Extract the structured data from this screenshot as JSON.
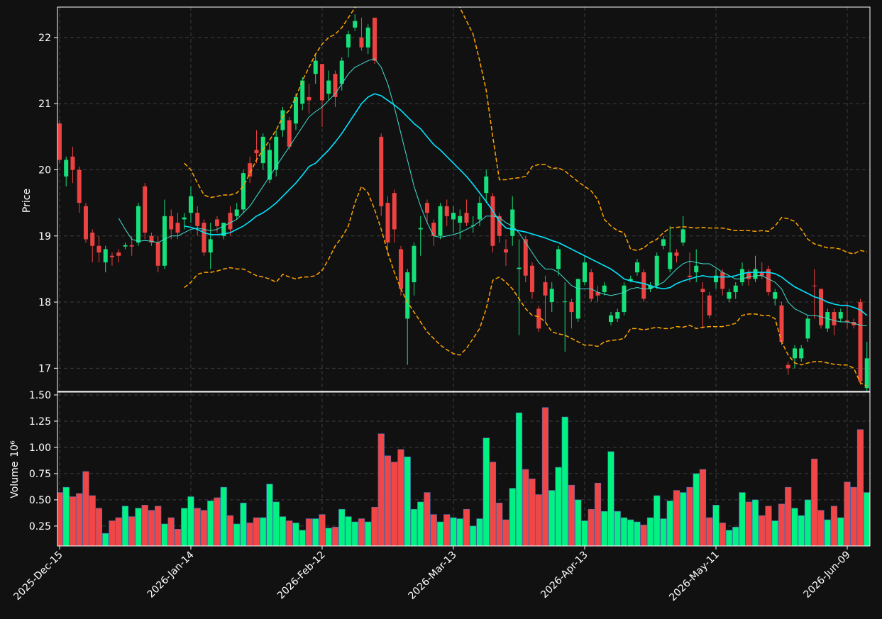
{
  "chart_data": {
    "type": "candlestick",
    "ylabel": "Price",
    "volume_ylabel": "Volume",
    "volume_scale_label": "10⁶",
    "up_color": "#16e07a",
    "down_color": "#ec4242",
    "volume_up_color": "#00f283",
    "volume_down_color": "#f24646",
    "grid": true,
    "xlim": [
      -0.32,
      123.46
    ],
    "xticks": [
      {
        "value": 0,
        "label": "2025-Dec-15"
      },
      {
        "value": 20,
        "label": "2026-Jan-14"
      },
      {
        "value": 40,
        "label": "2026-Feb-12"
      },
      {
        "value": 60,
        "label": "2026-Mar-13"
      },
      {
        "value": 80,
        "label": "2026-Apr-13"
      },
      {
        "value": 100,
        "label": "2026-May-11"
      },
      {
        "value": 120,
        "label": "2026-Jun-09"
      }
    ],
    "ylim": [
      16.65,
      22.46
    ],
    "yticks": [
      17,
      18,
      19,
      20,
      21,
      22
    ],
    "volume_ylim": [
      0.06,
      1.527
    ],
    "volume_yticks": [
      0.25,
      {
        "value": 0.5,
        "label": "0.50"
      },
      0.75,
      {
        "value": 1.0,
        "label": "1.00"
      },
      1.25,
      {
        "value": 1.5,
        "label": "1.50"
      }
    ],
    "open": [
      20.7,
      19.9,
      20.2,
      20.0,
      19.45,
      19.05,
      18.85,
      18.6,
      18.7,
      18.75,
      18.84,
      18.86,
      18.9,
      19.75,
      19.0,
      18.9,
      18.55,
      19.3,
      19.2,
      19.25,
      19.35,
      19.35,
      19.2,
      18.75,
      19.25,
      19.0,
      19.35,
      19.3,
      19.4,
      20.1,
      20.3,
      20.1,
      19.85,
      20.0,
      20.6,
      20.75,
      20.7,
      21.0,
      21.1,
      21.45,
      21.6,
      21.15,
      21.45,
      21.3,
      21.85,
      22.15,
      22.0,
      21.85,
      22.3,
      20.5,
      19.5,
      19.65,
      18.8,
      17.75,
      18.3,
      19.1,
      19.5,
      19.2,
      19.0,
      19.45,
      19.25,
      19.2,
      19.35,
      19.15,
      19.25,
      19.65,
      19.6,
      19.3,
      18.8,
      19.0,
      18.5,
      18.95,
      18.55,
      17.9,
      18.3,
      18.0,
      18.5,
      18.0,
      18.0,
      17.75,
      18.3,
      18.45,
      18.15,
      18.15,
      17.7,
      17.75,
      17.85,
      18.32,
      18.45,
      18.45,
      18.2,
      18.25,
      18.85,
      18.5,
      18.75,
      18.9,
      18.4,
      18.45,
      18.2,
      18.1,
      18.3,
      18.45,
      18.05,
      18.15,
      18.3,
      18.45,
      18.35,
      18.45,
      18.5,
      18.05,
      17.95,
      17.05,
      17.15,
      17.15,
      17.45,
      18.25,
      18.2,
      17.6,
      17.85,
      17.75,
      17.72,
      17.7,
      18.0,
      16.7
    ],
    "high": [
      20.75,
      20.2,
      20.35,
      20.05,
      19.5,
      19.1,
      19.0,
      18.85,
      18.75,
      18.8,
      18.9,
      19.0,
      19.5,
      19.8,
      19.05,
      19.0,
      19.55,
      19.4,
      19.35,
      19.35,
      19.75,
      19.45,
      19.25,
      19.2,
      19.3,
      19.2,
      19.45,
      19.5,
      20.0,
      20.2,
      20.6,
      20.55,
      20.4,
      20.6,
      20.95,
      20.8,
      21.15,
      21.4,
      21.3,
      21.75,
      21.6,
      21.5,
      21.5,
      21.7,
      22.1,
      22.35,
      22.3,
      22.2,
      22.3,
      20.55,
      19.6,
      19.7,
      18.85,
      18.5,
      18.9,
      19.3,
      19.55,
      19.25,
      19.5,
      19.55,
      19.45,
      19.4,
      19.55,
      19.3,
      19.6,
      20.0,
      19.65,
      19.35,
      18.95,
      19.6,
      18.95,
      19.0,
      18.6,
      17.95,
      18.4,
      18.3,
      18.85,
      18.3,
      18.05,
      18.35,
      18.7,
      18.5,
      18.25,
      18.3,
      17.85,
      17.9,
      18.3,
      18.4,
      18.65,
      18.5,
      18.3,
      18.75,
      19.0,
      19.15,
      18.8,
      19.3,
      18.75,
      18.8,
      18.3,
      18.15,
      18.5,
      18.5,
      18.2,
      18.3,
      18.6,
      18.5,
      18.7,
      18.6,
      18.55,
      18.2,
      18.0,
      17.1,
      17.35,
      17.35,
      17.8,
      18.5,
      18.2,
      17.9,
      17.9,
      17.9,
      18.0,
      17.75,
      18.05,
      17.4
    ],
    "low": [
      20.1,
      19.75,
      19.8,
      19.35,
      18.9,
      18.6,
      18.6,
      18.45,
      18.55,
      18.6,
      18.8,
      18.7,
      18.85,
      18.95,
      18.85,
      18.45,
      18.5,
      18.95,
      18.95,
      19.1,
      19.2,
      19.0,
      18.7,
      18.5,
      19.05,
      18.95,
      19.0,
      19.25,
      19.35,
      19.8,
      20.1,
      20.0,
      19.8,
      19.9,
      20.5,
      20.3,
      20.6,
      20.9,
      20.85,
      21.3,
      20.65,
      21.05,
      20.95,
      21.2,
      21.7,
      22.1,
      21.8,
      21.75,
      21.6,
      19.3,
      18.7,
      18.9,
      18.1,
      17.05,
      18.1,
      18.7,
      19.2,
      18.85,
      18.95,
      19.15,
      19.05,
      18.95,
      19.15,
      19.05,
      19.15,
      19.5,
      18.75,
      18.9,
      18.55,
      18.85,
      17.5,
      18.3,
      18.05,
      17.55,
      17.7,
      17.85,
      18.4,
      17.25,
      17.6,
      17.7,
      18.25,
      18.0,
      18.0,
      18.1,
      17.65,
      17.7,
      17.8,
      18.3,
      18.4,
      18.0,
      18.15,
      18.2,
      18.8,
      18.45,
      18.6,
      18.85,
      18.3,
      18.3,
      17.6,
      17.75,
      18.2,
      18.1,
      18.0,
      18.05,
      18.25,
      18.25,
      18.3,
      18.35,
      18.1,
      17.95,
      17.35,
      16.9,
      17.0,
      17.1,
      17.4,
      17.75,
      17.6,
      17.55,
      17.5,
      17.7,
      17.6,
      17.6,
      16.75,
      16.65
    ],
    "close": [
      20.15,
      20.15,
      20.0,
      19.5,
      18.95,
      18.85,
      18.75,
      18.8,
      18.68,
      18.7,
      18.86,
      18.84,
      19.45,
      19.05,
      18.9,
      18.55,
      19.3,
      19.1,
      19.05,
      19.28,
      19.6,
      19.15,
      18.75,
      18.95,
      19.15,
      19.2,
      19.1,
      19.4,
      19.95,
      19.9,
      20.25,
      20.5,
      20.3,
      20.5,
      20.9,
      20.35,
      21.1,
      21.35,
      21.05,
      21.65,
      21.05,
      21.35,
      21.1,
      21.65,
      22.05,
      22.25,
      21.85,
      22.15,
      21.65,
      19.45,
      18.9,
      19.1,
      18.2,
      18.45,
      18.85,
      19.12,
      19.35,
      19.0,
      19.45,
      19.3,
      19.35,
      19.3,
      19.2,
      19.16,
      19.5,
      19.9,
      18.85,
      19.0,
      18.75,
      19.4,
      18.52,
      18.4,
      18.15,
      17.6,
      18.1,
      18.2,
      18.8,
      18.01,
      17.85,
      18.35,
      18.6,
      18.05,
      18.1,
      18.25,
      17.8,
      17.85,
      18.25,
      18.35,
      18.6,
      18.05,
      18.25,
      18.7,
      18.95,
      18.75,
      18.7,
      19.1,
      18.38,
      18.55,
      18.15,
      17.8,
      18.4,
      18.2,
      18.15,
      18.25,
      18.5,
      18.35,
      18.5,
      18.4,
      18.15,
      18.15,
      17.4,
      17.0,
      17.3,
      17.3,
      17.75,
      18.24,
      17.65,
      17.85,
      17.65,
      17.85,
      17.7,
      17.65,
      16.8,
      17.15
    ],
    "volume": [
      0.57,
      0.62,
      0.53,
      0.56,
      0.77,
      0.54,
      0.42,
      0.18,
      0.3,
      0.33,
      0.44,
      0.34,
      0.42,
      0.45,
      0.4,
      0.44,
      0.27,
      0.33,
      0.22,
      0.42,
      0.53,
      0.42,
      0.4,
      0.49,
      0.52,
      0.62,
      0.35,
      0.27,
      0.47,
      0.28,
      0.33,
      0.33,
      0.65,
      0.48,
      0.34,
      0.3,
      0.28,
      0.21,
      0.32,
      0.32,
      0.36,
      0.23,
      0.24,
      0.41,
      0.34,
      0.29,
      0.32,
      0.29,
      0.43,
      1.13,
      0.92,
      0.86,
      0.98,
      0.91,
      0.41,
      0.48,
      0.57,
      0.36,
      0.29,
      0.36,
      0.33,
      0.32,
      0.41,
      0.25,
      0.32,
      1.09,
      0.86,
      0.47,
      0.31,
      0.61,
      1.33,
      0.79,
      0.7,
      0.55,
      1.38,
      0.59,
      0.81,
      1.29,
      0.64,
      0.5,
      0.3,
      0.41,
      0.66,
      0.39,
      0.96,
      0.39,
      0.33,
      0.31,
      0.29,
      0.26,
      0.33,
      0.54,
      0.32,
      0.49,
      0.59,
      0.57,
      0.62,
      0.75,
      0.79,
      0.33,
      0.45,
      0.28,
      0.21,
      0.24,
      0.57,
      0.48,
      0.5,
      0.35,
      0.44,
      0.3,
      0.46,
      0.62,
      0.42,
      0.35,
      0.5,
      0.89,
      0.4,
      0.31,
      0.44,
      0.33,
      0.67,
      0.62,
      1.17,
      0.57
    ],
    "overlays": [
      {
        "color": "#40e0d0",
        "width": 1,
        "dash": false,
        "values": [
          null,
          null,
          null,
          null,
          null,
          null,
          null,
          null,
          null,
          19.27,
          19.1,
          18.95,
          18.92,
          18.93,
          18.92,
          18.9,
          18.95,
          19.0,
          19.0,
          19.05,
          19.1,
          19.12,
          19.1,
          19.08,
          19.1,
          19.15,
          19.2,
          19.25,
          19.35,
          19.45,
          19.6,
          19.75,
          19.9,
          20.05,
          20.2,
          20.35,
          20.5,
          20.65,
          20.8,
          20.88,
          20.95,
          21.05,
          21.15,
          21.3,
          21.45,
          21.55,
          21.6,
          21.65,
          21.68,
          21.55,
          21.3,
          20.95,
          20.55,
          20.15,
          19.75,
          19.45,
          19.2,
          19.0,
          18.98,
          19.0,
          19.02,
          19.05,
          19.1,
          19.15,
          19.22,
          19.3,
          19.3,
          19.28,
          19.2,
          19.15,
          19.05,
          18.9,
          18.75,
          18.6,
          18.5,
          18.5,
          18.45,
          18.35,
          18.25,
          18.2,
          18.2,
          18.2,
          18.15,
          18.12,
          18.1,
          18.12,
          18.15,
          18.2,
          18.22,
          18.2,
          18.2,
          18.25,
          18.3,
          18.4,
          18.5,
          18.58,
          18.62,
          18.6,
          18.58,
          18.58,
          18.52,
          18.45,
          18.4,
          18.35,
          18.35,
          18.38,
          18.4,
          18.4,
          18.35,
          18.3,
          18.2,
          18.0,
          17.9,
          17.85,
          17.8,
          17.8,
          17.78,
          17.75,
          17.72,
          17.7,
          17.7,
          17.68,
          17.65,
          17.64
        ]
      },
      {
        "color": "#00e5ff",
        "width": 1.6,
        "dash": false,
        "values": [
          null,
          null,
          null,
          null,
          null,
          null,
          null,
          null,
          null,
          null,
          null,
          null,
          null,
          null,
          null,
          null,
          null,
          null,
          null,
          19.15,
          19.13,
          19.1,
          19.05,
          19.02,
          19.02,
          19.03,
          19.05,
          19.1,
          19.15,
          19.22,
          19.3,
          19.35,
          19.42,
          19.5,
          19.6,
          19.7,
          19.8,
          19.92,
          20.05,
          20.1,
          20.2,
          20.3,
          20.42,
          20.55,
          20.7,
          20.85,
          21.0,
          21.1,
          21.15,
          21.12,
          21.05,
          20.98,
          20.9,
          20.8,
          20.7,
          20.62,
          20.5,
          20.38,
          20.3,
          20.2,
          20.1,
          20.0,
          19.9,
          19.78,
          19.65,
          19.52,
          19.38,
          19.22,
          19.12,
          19.1,
          19.08,
          19.06,
          19.03,
          19.0,
          18.97,
          18.93,
          18.9,
          18.85,
          18.8,
          18.75,
          18.7,
          18.65,
          18.6,
          18.55,
          18.5,
          18.43,
          18.35,
          18.32,
          18.3,
          18.28,
          18.25,
          18.22,
          18.2,
          18.22,
          18.28,
          18.32,
          18.35,
          18.38,
          18.4,
          18.38,
          18.38,
          18.38,
          18.38,
          18.4,
          18.43,
          18.45,
          18.45,
          18.45,
          18.45,
          18.43,
          18.38,
          18.3,
          18.23,
          18.18,
          18.13,
          18.08,
          18.05,
          18.0,
          17.97,
          17.95,
          17.95,
          17.92,
          17.88,
          17.8
        ]
      },
      {
        "color": "#ffa500",
        "width": 1.5,
        "dash": true,
        "values": [
          null,
          null,
          null,
          null,
          null,
          null,
          null,
          null,
          null,
          null,
          null,
          null,
          null,
          null,
          null,
          null,
          null,
          null,
          null,
          20.1,
          20.0,
          19.8,
          19.62,
          19.58,
          19.6,
          19.62,
          19.62,
          19.65,
          19.75,
          19.95,
          20.15,
          20.3,
          20.45,
          20.6,
          20.8,
          20.9,
          21.1,
          21.35,
          21.55,
          21.75,
          21.9,
          22.0,
          22.05,
          22.15,
          22.3,
          22.45,
          22.6,
          22.8,
          23.0,
          23.25,
          23.4,
          23.5,
          23.55,
          23.5,
          23.4,
          23.3,
          23.2,
          23.05,
          22.9,
          22.75,
          22.6,
          22.45,
          22.25,
          22.05,
          21.65,
          21.2,
          20.5,
          19.85,
          19.85,
          19.87,
          19.88,
          19.9,
          20.05,
          20.08,
          20.08,
          20.02,
          20.03,
          19.98,
          19.9,
          19.82,
          19.75,
          19.68,
          19.55,
          19.25,
          19.15,
          19.08,
          19.05,
          18.8,
          18.78,
          18.82,
          18.9,
          18.95,
          19.05,
          19.12,
          19.13,
          19.14,
          19.13,
          19.12,
          19.13,
          19.12,
          19.12,
          19.12,
          19.1,
          19.08,
          19.08,
          19.08,
          19.07,
          19.08,
          19.07,
          19.15,
          19.28,
          19.26,
          19.22,
          19.1,
          18.95,
          18.88,
          18.85,
          18.82,
          18.82,
          18.8,
          18.75,
          18.73,
          18.78,
          18.76
        ]
      },
      {
        "color": "#ffa500",
        "width": 1.5,
        "dash": true,
        "values": [
          null,
          null,
          null,
          null,
          null,
          null,
          null,
          null,
          null,
          null,
          null,
          null,
          null,
          null,
          null,
          null,
          null,
          null,
          null,
          18.22,
          18.3,
          18.42,
          18.45,
          18.45,
          18.47,
          18.5,
          18.52,
          18.5,
          18.5,
          18.45,
          18.4,
          18.38,
          18.35,
          18.3,
          18.42,
          18.38,
          18.35,
          18.38,
          18.38,
          18.4,
          18.48,
          18.65,
          18.85,
          18.98,
          19.15,
          19.5,
          19.75,
          19.65,
          19.4,
          19.1,
          18.75,
          18.45,
          18.2,
          18.0,
          17.85,
          17.7,
          17.55,
          17.45,
          17.35,
          17.28,
          17.22,
          17.2,
          17.3,
          17.45,
          17.6,
          17.9,
          18.33,
          18.38,
          18.3,
          18.2,
          18.05,
          17.9,
          17.8,
          17.78,
          17.7,
          17.55,
          17.52,
          17.5,
          17.45,
          17.4,
          17.35,
          17.35,
          17.33,
          17.4,
          17.42,
          17.43,
          17.45,
          17.6,
          17.6,
          17.58,
          17.6,
          17.62,
          17.6,
          17.6,
          17.63,
          17.62,
          17.65,
          17.6,
          17.62,
          17.63,
          17.63,
          17.63,
          17.65,
          17.68,
          17.8,
          17.82,
          17.82,
          17.8,
          17.8,
          17.75,
          17.4,
          17.2,
          17.08,
          17.05,
          17.08,
          17.1,
          17.1,
          17.08,
          17.06,
          17.05,
          17.05,
          17.0,
          16.78,
          16.73
        ]
      }
    ]
  }
}
